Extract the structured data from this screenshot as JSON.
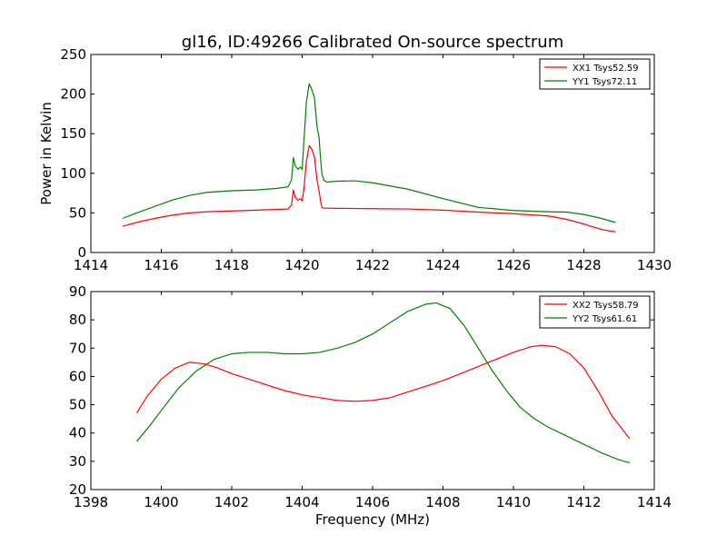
{
  "figure": {
    "title": "gl16, ID:49266 Calibrated On-source spectrum"
  },
  "colors": {
    "red": "#ff0000",
    "green": "#008000"
  },
  "chart_data": [
    {
      "type": "line",
      "name": "top-panel",
      "title": "gl16, ID:49266 Calibrated On-source spectrum",
      "xlabel": "",
      "ylabel": "Power in Kelvin",
      "xlim": [
        1414,
        1430
      ],
      "ylim": [
        0,
        250
      ],
      "xticks": [
        1414,
        1416,
        1418,
        1420,
        1422,
        1424,
        1426,
        1428,
        1430
      ],
      "yticks": [
        0,
        50,
        100,
        150,
        200,
        250
      ],
      "legend": "top-right",
      "series": [
        {
          "name": "XX1 Tsys52.59",
          "color": "#ff0000",
          "x": [
            1414.9,
            1415.3,
            1415.8,
            1416.3,
            1416.8,
            1417.3,
            1418.0,
            1418.7,
            1419.3,
            1419.6,
            1419.7,
            1419.75,
            1419.8,
            1419.88,
            1419.95,
            1420.0,
            1420.05,
            1420.12,
            1420.2,
            1420.28,
            1420.35,
            1420.42,
            1420.48,
            1420.52,
            1420.56,
            1420.62,
            1420.7,
            1421.0,
            1422.0,
            1423.0,
            1424.0,
            1425.0,
            1426.0,
            1427.0,
            1427.5,
            1428.0,
            1428.5,
            1428.9
          ],
          "y": [
            33,
            38,
            43,
            47,
            50,
            51.5,
            52.5,
            53.5,
            54.5,
            55,
            60,
            79,
            70,
            66,
            68,
            65,
            80,
            115,
            135,
            130,
            120,
            92,
            78,
            66,
            57,
            56,
            56,
            55.8,
            55.3,
            55,
            53.5,
            51,
            49,
            46,
            42,
            36,
            29,
            26
          ]
        },
        {
          "name": "YY1 Tsys72.11",
          "color": "#008000",
          "x": [
            1414.9,
            1415.3,
            1415.8,
            1416.3,
            1416.8,
            1417.3,
            1418.0,
            1418.7,
            1419.3,
            1419.6,
            1419.7,
            1419.75,
            1419.8,
            1419.88,
            1419.95,
            1420.0,
            1420.05,
            1420.12,
            1420.2,
            1420.28,
            1420.35,
            1420.42,
            1420.48,
            1420.52,
            1420.56,
            1420.62,
            1420.7,
            1421.0,
            1421.5,
            1422.0,
            1423.0,
            1424.0,
            1425.0,
            1426.0,
            1427.0,
            1427.5,
            1428.0,
            1428.5,
            1428.9
          ],
          "y": [
            43,
            50,
            58,
            66,
            72,
            76,
            78,
            79,
            81,
            83,
            92,
            120,
            110,
            105,
            108,
            105,
            140,
            190,
            213,
            205,
            195,
            160,
            145,
            120,
            100,
            91,
            89,
            90,
            90.5,
            88,
            80,
            68,
            57,
            53,
            51.5,
            51,
            48,
            43,
            38
          ]
        }
      ]
    },
    {
      "type": "line",
      "name": "bottom-panel",
      "title": "",
      "xlabel": "Frequency (MHz)",
      "ylabel": "",
      "xlim": [
        1398,
        1414
      ],
      "ylim": [
        20,
        90
      ],
      "xticks": [
        1398,
        1400,
        1402,
        1404,
        1406,
        1408,
        1410,
        1412,
        1414
      ],
      "yticks": [
        20,
        30,
        40,
        50,
        60,
        70,
        80,
        90
      ],
      "legend": "top-right",
      "series": [
        {
          "name": "XX2 Tsys58.79",
          "color": "#ff0000",
          "x": [
            1399.3,
            1399.6,
            1400.0,
            1400.4,
            1400.8,
            1401.2,
            1401.6,
            1402.0,
            1402.5,
            1403.0,
            1403.5,
            1404.0,
            1404.5,
            1405.0,
            1405.5,
            1406.0,
            1406.5,
            1407.0,
            1407.5,
            1408.0,
            1408.5,
            1409.0,
            1409.5,
            1410.0,
            1410.5,
            1410.8,
            1411.2,
            1411.6,
            1412.0,
            1412.4,
            1412.8,
            1413.3
          ],
          "y": [
            47,
            53,
            59,
            63,
            65,
            64.5,
            63,
            61,
            59,
            57,
            55,
            53.5,
            52.5,
            51.5,
            51.2,
            51.5,
            52.5,
            54.5,
            56.5,
            58.5,
            61,
            63.5,
            66,
            68.5,
            70.5,
            71,
            70.5,
            68,
            63,
            55,
            46,
            38
          ]
        },
        {
          "name": "YY2 Tsys61.61",
          "color": "#008000",
          "x": [
            1399.3,
            1399.7,
            1400.0,
            1400.5,
            1401.0,
            1401.5,
            1402.0,
            1402.5,
            1403.0,
            1403.5,
            1404.0,
            1404.5,
            1405.0,
            1405.5,
            1406.0,
            1406.5,
            1407.0,
            1407.5,
            1407.8,
            1408.2,
            1408.6,
            1409.0,
            1409.4,
            1409.8,
            1410.2,
            1410.6,
            1411.0,
            1411.5,
            1412.0,
            1412.5,
            1413.0,
            1413.3
          ],
          "y": [
            37,
            43,
            48,
            56,
            62,
            66,
            68,
            68.5,
            68.5,
            68,
            68,
            68.5,
            70,
            72,
            75,
            79,
            83,
            85.5,
            86,
            84,
            78,
            70,
            62,
            55,
            49,
            45,
            42,
            39,
            36,
            33,
            30.5,
            29.5
          ]
        }
      ]
    }
  ]
}
